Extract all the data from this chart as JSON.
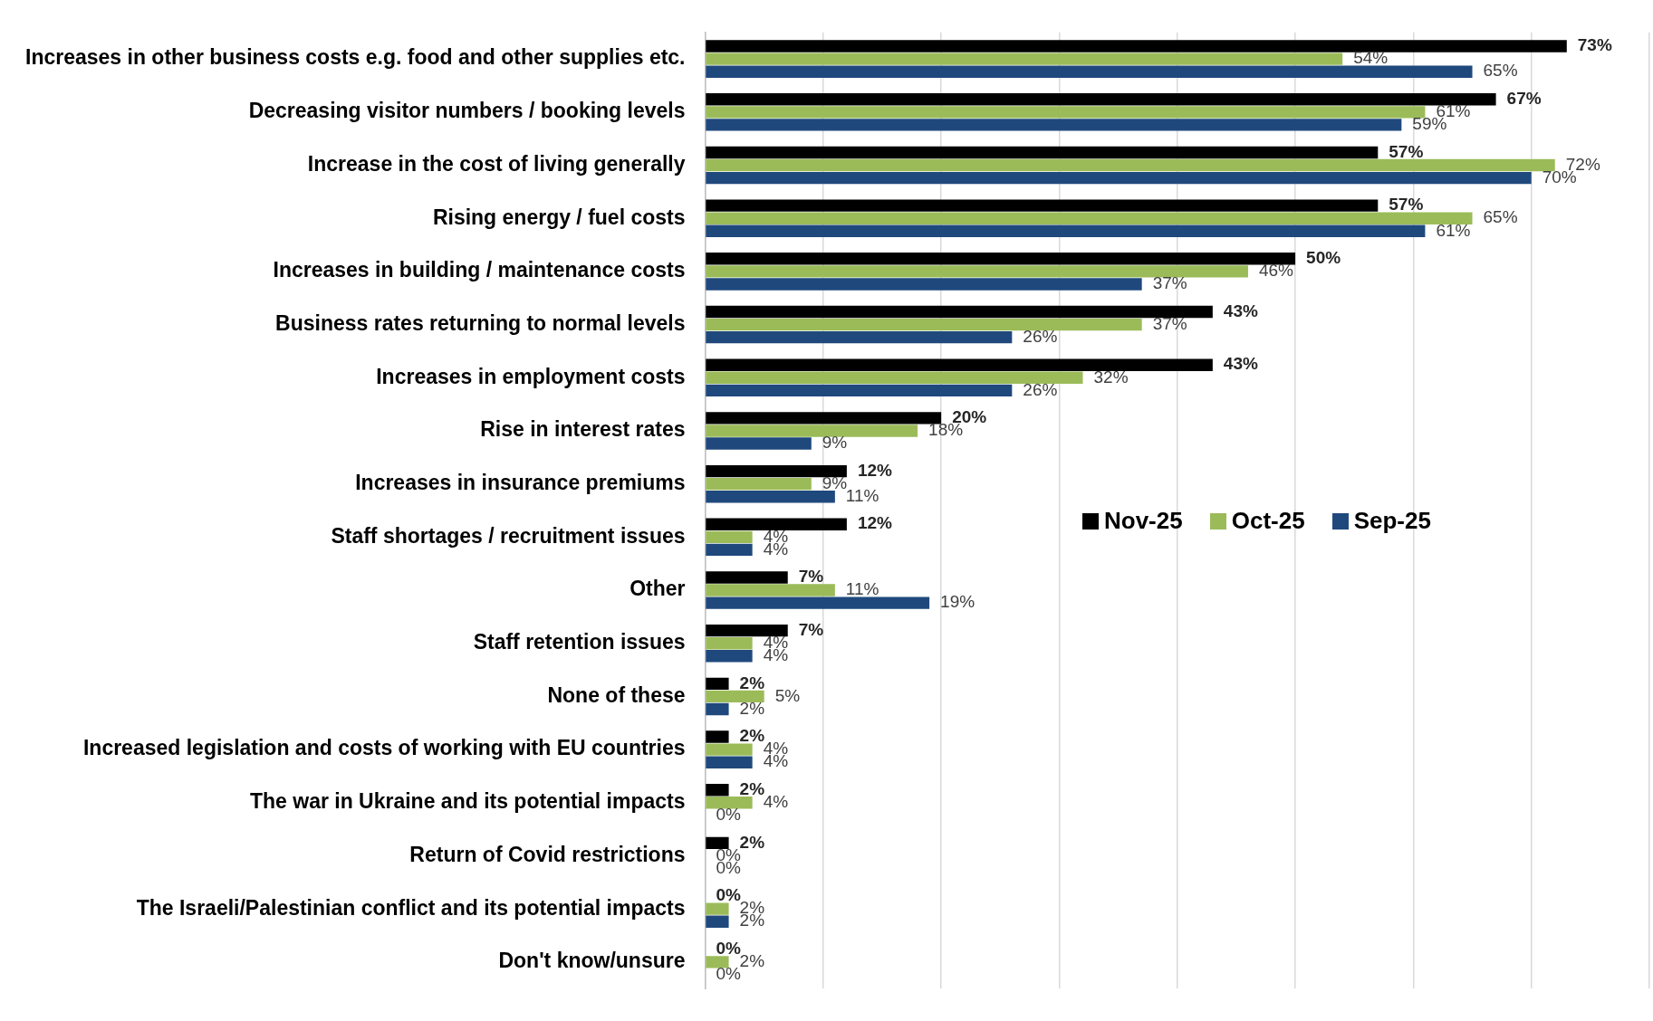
{
  "chart_data": {
    "type": "bar",
    "orientation": "horizontal",
    "categories": [
      "Increases in other business costs e.g. food and other supplies etc.",
      "Decreasing visitor numbers / booking levels",
      "Increase in the cost of living generally",
      "Rising energy / fuel costs",
      "Increases in building / maintenance costs",
      "Business rates returning to normal levels",
      "Increases in employment costs",
      "Rise in interest rates",
      "Increases in insurance premiums",
      "Staff shortages / recruitment issues",
      "Other",
      "Staff retention issues",
      "None of these",
      "Increased legislation and costs of working with EU countries",
      "The war in Ukraine and its potential impacts",
      "Return of Covid restrictions",
      "The Israeli/Palestinian conflict and its potential impacts",
      "Don't know/unsure"
    ],
    "series": [
      {
        "name": "Nov-25",
        "color": "#000000",
        "values": [
          73,
          67,
          57,
          57,
          50,
          43,
          43,
          20,
          12,
          12,
          7,
          7,
          2,
          2,
          2,
          2,
          0,
          0
        ],
        "value_labels": [
          "73%",
          "67%",
          "57%",
          "57%",
          "50%",
          "43%",
          "43%",
          "20%",
          "12%",
          "12%",
          "7%",
          "7%",
          "2%",
          "2%",
          "2%",
          "2%",
          "0%",
          "0%"
        ]
      },
      {
        "name": "Oct-25",
        "color": "#9bbb59",
        "values": [
          54,
          61,
          72,
          65,
          46,
          37,
          32,
          18,
          9,
          4,
          11,
          4,
          5,
          4,
          4,
          0,
          2,
          2
        ],
        "value_labels": [
          "54%",
          "61%",
          "72%",
          "65%",
          "46%",
          "37%",
          "32%",
          "18%",
          "9%",
          "4%",
          "11%",
          "4%",
          "5%",
          "4%",
          "4%",
          "0%",
          "2%",
          "2%"
        ]
      },
      {
        "name": "Sep-25",
        "color": "#1f497d",
        "values": [
          65,
          59,
          70,
          61,
          37,
          26,
          26,
          9,
          11,
          4,
          19,
          4,
          2,
          4,
          0,
          0,
          2,
          0
        ],
        "value_labels": [
          "65%",
          "59%",
          "70%",
          "61%",
          "37%",
          "26%",
          "26%",
          "9%",
          "11%",
          "4%",
          "19%",
          "4%",
          "2%",
          "4%",
          "0%",
          "0%",
          "2%",
          "0%"
        ]
      }
    ],
    "xlim": [
      0,
      80
    ],
    "xticks": [
      {
        "value": 0,
        "label": null
      },
      {
        "value": 10,
        "label": null
      },
      {
        "value": 20,
        "label": null
      },
      {
        "value": 30,
        "label": null
      },
      {
        "value": 40,
        "label": null
      },
      {
        "value": 50,
        "label": null
      },
      {
        "value": 60,
        "label": null
      },
      {
        "value": 70,
        "label": null
      },
      {
        "value": 80,
        "label": null
      }
    ],
    "grid": "x",
    "legend": "right",
    "tick_labels": "y"
  }
}
